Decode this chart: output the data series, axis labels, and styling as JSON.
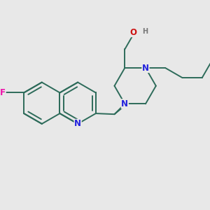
{
  "background_color": "#e8e8e8",
  "bond_color": "#2d6b5a",
  "bond_width": 1.4,
  "atom_colors": {
    "N": "#2222dd",
    "F": "#ee11aa",
    "O": "#cc1111",
    "H": "#777777"
  },
  "figsize": [
    3.0,
    3.0
  ],
  "dpi": 100,
  "xlim": [
    0.2,
    2.9
  ],
  "ylim": [
    0.5,
    2.55
  ]
}
